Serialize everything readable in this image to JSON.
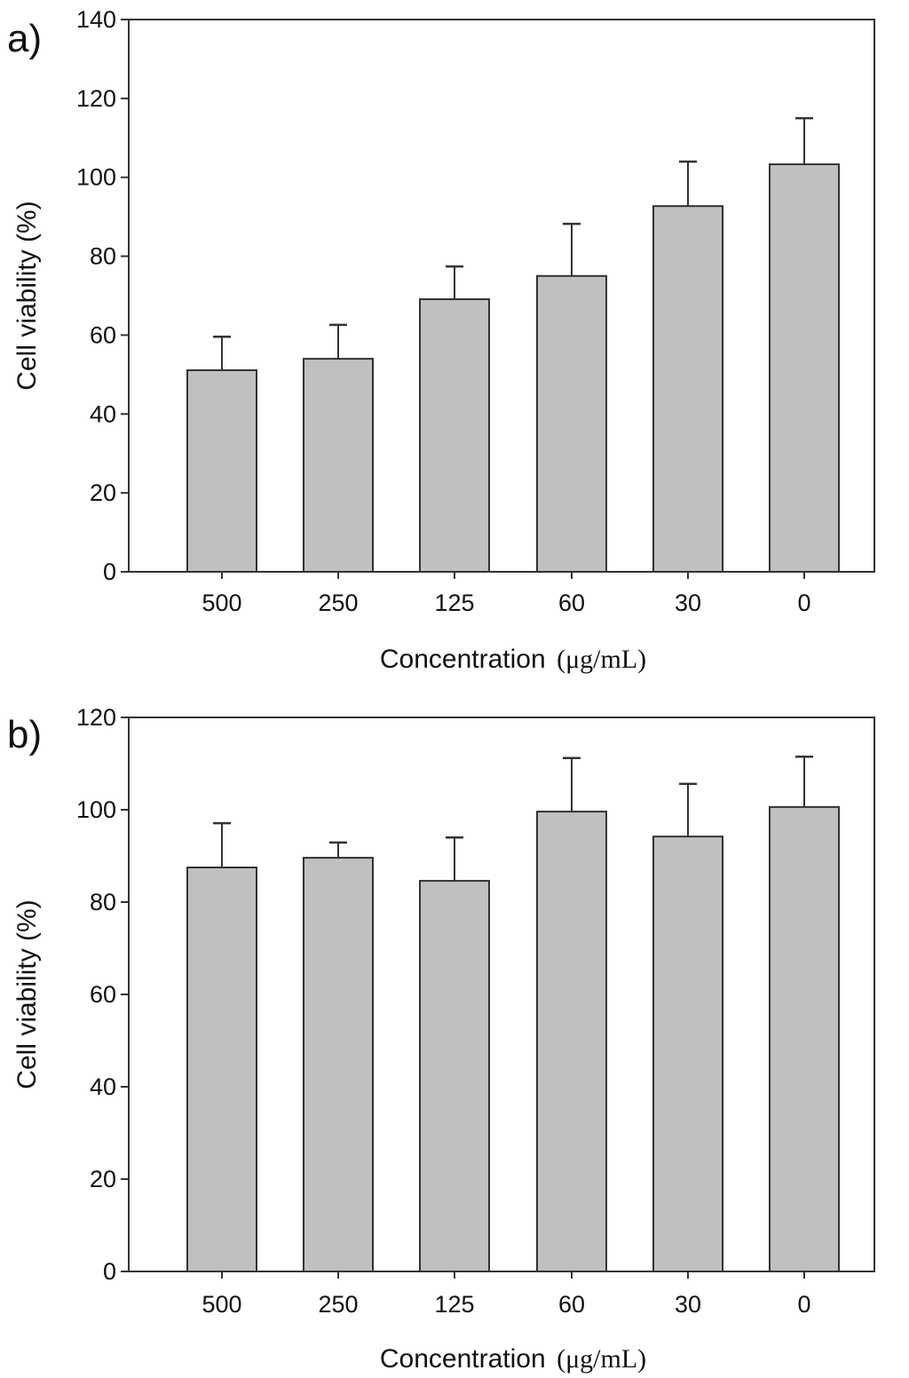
{
  "chart_data": [
    {
      "type": "bar",
      "panel_label": "a)",
      "categories": [
        "500",
        "250",
        "125",
        "60",
        "30",
        "0"
      ],
      "values": [
        51.1,
        54.0,
        69.1,
        75.0,
        92.7,
        103.3
      ],
      "error_upper": [
        59.6,
        62.6,
        77.4,
        88.2,
        104.0,
        115.0
      ],
      "xlabel": "Concentration",
      "xlabel_unit": "(μg/mL)",
      "ylabel": "Cell viability (%)",
      "ylim": [
        0,
        140
      ],
      "yticks": [
        0,
        20,
        40,
        60,
        80,
        100,
        120,
        140
      ],
      "grid": false,
      "bar_color": "#c0c0c0",
      "edge_color": "#333333"
    },
    {
      "type": "bar",
      "panel_label": "b)",
      "categories": [
        "500",
        "250",
        "125",
        "60",
        "30",
        "0"
      ],
      "values": [
        87.5,
        89.6,
        84.6,
        99.6,
        94.2,
        100.6
      ],
      "error_upper": [
        97.1,
        92.9,
        94.0,
        111.2,
        105.6,
        111.5
      ],
      "xlabel": "Concentration",
      "xlabel_unit": "(μg/mL)",
      "ylabel": "Cell viability (%)",
      "ylim": [
        0,
        120
      ],
      "yticks": [
        0,
        20,
        40,
        60,
        80,
        100,
        120
      ],
      "grid": false,
      "bar_color": "#c0c0c0",
      "edge_color": "#333333"
    }
  ]
}
